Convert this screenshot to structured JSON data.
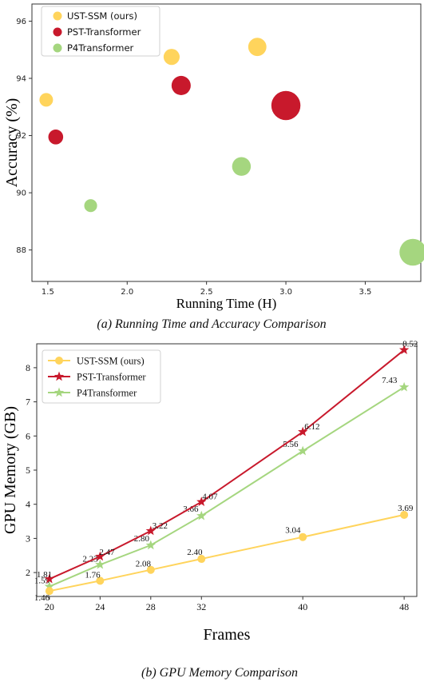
{
  "chart_data": [
    {
      "type": "scatter",
      "caption": "(a) Running Time and Accuracy Comparison",
      "xlabel": "Running Time (H)",
      "ylabel": "Accuracy (%)",
      "xlim": [
        1.4,
        3.85
      ],
      "ylim": [
        86.9,
        96.6
      ],
      "xticks": [
        1.5,
        2.0,
        2.5,
        3.0,
        3.5
      ],
      "xtick_labels": [
        "1.5",
        "2.0",
        "2.5",
        "3.0",
        "3.5"
      ],
      "yticks": [
        88,
        90,
        92,
        94,
        96
      ],
      "ytick_labels": [
        "88",
        "90",
        "92",
        "94",
        "96"
      ],
      "legend_position": "top-left",
      "series": [
        {
          "name": "UST-SSM (ours)",
          "color": "#FFD45C",
          "points": [
            {
              "x": 1.49,
              "y": 93.25,
              "size": 1
            },
            {
              "x": 2.28,
              "y": 94.75,
              "size": 1.4
            },
            {
              "x": 2.82,
              "y": 95.1,
              "size": 1.8
            }
          ]
        },
        {
          "name": "PST-Transformer",
          "color": "#C8192C",
          "points": [
            {
              "x": 1.55,
              "y": 91.95,
              "size": 1.2
            },
            {
              "x": 2.34,
              "y": 93.75,
              "size": 2.0
            },
            {
              "x": 3.0,
              "y": 93.05,
              "size": 4.6
            }
          ]
        },
        {
          "name": "P4Transformer",
          "color": "#A5D67F",
          "points": [
            {
              "x": 1.77,
              "y": 89.55,
              "size": 0.9
            },
            {
              "x": 2.72,
              "y": 90.92,
              "size": 1.9
            },
            {
              "x": 3.8,
              "y": 87.92,
              "size": 3.9
            }
          ]
        }
      ]
    },
    {
      "type": "line",
      "caption": "(b) GPU Memory Comparison",
      "xlabel": "Frames",
      "ylabel": "GPU Memory (GB)",
      "x": [
        20,
        24,
        28,
        32,
        40,
        48
      ],
      "xlim": [
        19,
        49
      ],
      "ylim": [
        1.3,
        8.7
      ],
      "xticks": [
        20,
        24,
        28,
        32,
        40,
        48
      ],
      "xtick_labels": [
        "20",
        "24",
        "28",
        "32",
        "40",
        "48"
      ],
      "yticks": [
        2,
        3,
        4,
        5,
        6,
        7,
        8
      ],
      "ytick_labels": [
        "2",
        "3",
        "4",
        "5",
        "6",
        "7",
        "8"
      ],
      "legend_position": "top-left",
      "series": [
        {
          "name": "UST-SSM (ours)",
          "color": "#FFD45C",
          "marker": "circle",
          "values": [
            1.46,
            1.76,
            2.08,
            2.4,
            3.04,
            3.69
          ],
          "labels": [
            "1.46",
            "1.76",
            "2.08",
            "2.40",
            "3.04",
            "3.69"
          ]
        },
        {
          "name": "PST-Transformer",
          "color": "#C8192C",
          "marker": "star",
          "values": [
            1.81,
            2.47,
            3.22,
            4.07,
            6.12,
            8.52
          ],
          "labels": [
            "1.81",
            "2.47",
            "3.22",
            "4.07",
            "6.12",
            "8.52"
          ]
        },
        {
          "name": "P4Transformer",
          "color": "#A5D67F",
          "marker": "star",
          "values": [
            1.59,
            2.23,
            2.8,
            3.66,
            5.56,
            7.43
          ],
          "labels": [
            "1.59",
            "2.23",
            "2.80",
            "3.66",
            "5.56",
            "7.43"
          ]
        }
      ]
    }
  ]
}
